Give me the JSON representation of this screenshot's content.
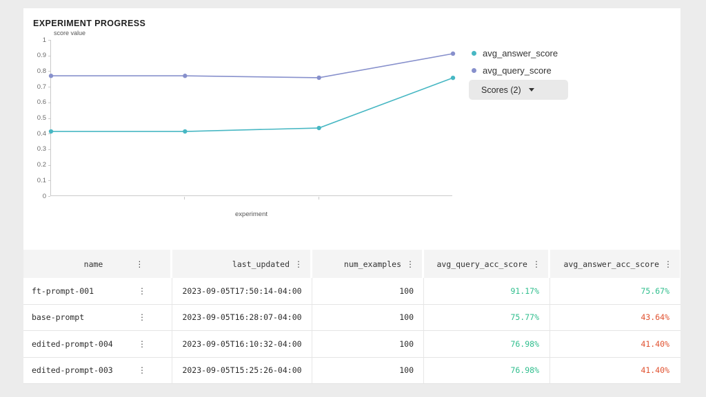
{
  "page": {
    "background": "#ececec",
    "card_background": "#ffffff"
  },
  "chart": {
    "title": "EXPERIMENT PROGRESS",
    "y_axis_label": "score value",
    "x_axis_label": "experiment",
    "y_tick_labels": [
      "1",
      "0.9",
      "0.8",
      "0.7",
      "0.6",
      "0.5",
      "0.4",
      "0.3",
      "0.2",
      "0.1",
      "0"
    ],
    "legend": [
      {
        "label": "avg_answer_score",
        "color": "#47b7c3"
      },
      {
        "label": "avg_query_score",
        "color": "#8790cc"
      }
    ],
    "scores_button_label": "Scores (2)"
  },
  "chart_data": {
    "type": "line",
    "x": [
      1,
      2,
      3,
      4
    ],
    "series": [
      {
        "name": "avg_answer_score",
        "color": "#47b7c3",
        "values": [
          0.414,
          0.414,
          0.436,
          0.757
        ]
      },
      {
        "name": "avg_query_score",
        "color": "#8790cc",
        "values": [
          0.77,
          0.77,
          0.758,
          0.912
        ]
      }
    ],
    "title": "EXPERIMENT PROGRESS",
    "xlabel": "experiment",
    "ylabel": "score value",
    "ylim": [
      0,
      1
    ],
    "grid": false,
    "legend_position": "right",
    "marker": "circle"
  },
  "table": {
    "menu_icon": "⋮",
    "value_colors": {
      "positive": "#2fbe8d",
      "negative": "#e0512f"
    },
    "columns": [
      {
        "key": "name",
        "label": "name"
      },
      {
        "key": "last_updated",
        "label": "last_updated"
      },
      {
        "key": "num_examples",
        "label": "num_examples"
      },
      {
        "key": "avg_query_acc_score",
        "label": "avg_query_acc_score"
      },
      {
        "key": "avg_answer_acc_score",
        "label": "avg_answer_acc_score"
      }
    ],
    "rows": [
      {
        "name": "ft-prompt-001",
        "last_updated": "2023-09-05T17:50:14-04:00",
        "num_examples": "100",
        "avg_query_acc_score": "91.17%",
        "query_tone": "positive",
        "avg_answer_acc_score": "75.67%",
        "answer_tone": "positive"
      },
      {
        "name": "base-prompt",
        "last_updated": "2023-09-05T16:28:07-04:00",
        "num_examples": "100",
        "avg_query_acc_score": "75.77%",
        "query_tone": "positive",
        "avg_answer_acc_score": "43.64%",
        "answer_tone": "negative"
      },
      {
        "name": "edited-prompt-004",
        "last_updated": "2023-09-05T16:10:32-04:00",
        "num_examples": "100",
        "avg_query_acc_score": "76.98%",
        "query_tone": "positive",
        "avg_answer_acc_score": "41.40%",
        "answer_tone": "negative"
      },
      {
        "name": "edited-prompt-003",
        "last_updated": "2023-09-05T15:25:26-04:00",
        "num_examples": "100",
        "avg_query_acc_score": "76.98%",
        "query_tone": "positive",
        "avg_answer_acc_score": "41.40%",
        "answer_tone": "negative"
      }
    ]
  }
}
